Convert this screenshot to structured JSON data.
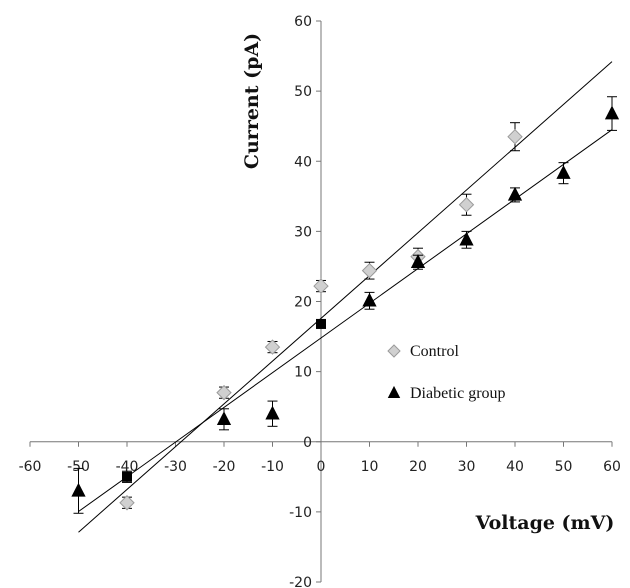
{
  "chart_data": {
    "type": "scatter",
    "title": "",
    "xlabel": "Voltage (mV)",
    "ylabel": "Current (pA)",
    "xlim": [
      -60,
      60
    ],
    "ylim": [
      -20,
      60
    ],
    "x_ticks": [
      -60,
      -50,
      -40,
      -30,
      -20,
      -10,
      0,
      10,
      20,
      30,
      40,
      50,
      60
    ],
    "y_ticks": [
      -20,
      -10,
      0,
      10,
      20,
      30,
      40,
      50,
      60
    ],
    "grid": false,
    "legend_position": "right-center",
    "series": [
      {
        "name": "Control",
        "marker": "diamond",
        "color": "#d0d0d0",
        "x": [
          -40,
          -20,
          -10,
          0,
          10,
          20,
          30,
          40
        ],
        "y": [
          -8.7,
          7.0,
          13.5,
          22.2,
          24.4,
          26.4,
          33.8,
          43.5
        ],
        "error": [
          0.8,
          0.8,
          0.8,
          0.8,
          1.2,
          1.2,
          1.5,
          2.0
        ],
        "trendline": {
          "slope": 0.61,
          "intercept": 17.6,
          "x_range": [
            -50,
            60
          ]
        }
      },
      {
        "name": "Diabetic group",
        "marker": "triangle",
        "color": "#000000",
        "x": [
          -50,
          -40,
          -20,
          -10,
          0,
          10,
          20,
          30,
          40,
          50,
          60
        ],
        "y": [
          -7.0,
          -5.0,
          3.2,
          4.0,
          16.8,
          20.1,
          25.6,
          28.8,
          35.2,
          38.3,
          46.8
        ],
        "error": [
          3.2,
          0.8,
          1.5,
          1.8,
          0.6,
          1.2,
          1.0,
          1.2,
          1.0,
          1.5,
          2.4
        ],
        "trendline": {
          "slope": 0.495,
          "intercept": 14.8,
          "x_range": [
            -50,
            60
          ]
        }
      }
    ]
  }
}
